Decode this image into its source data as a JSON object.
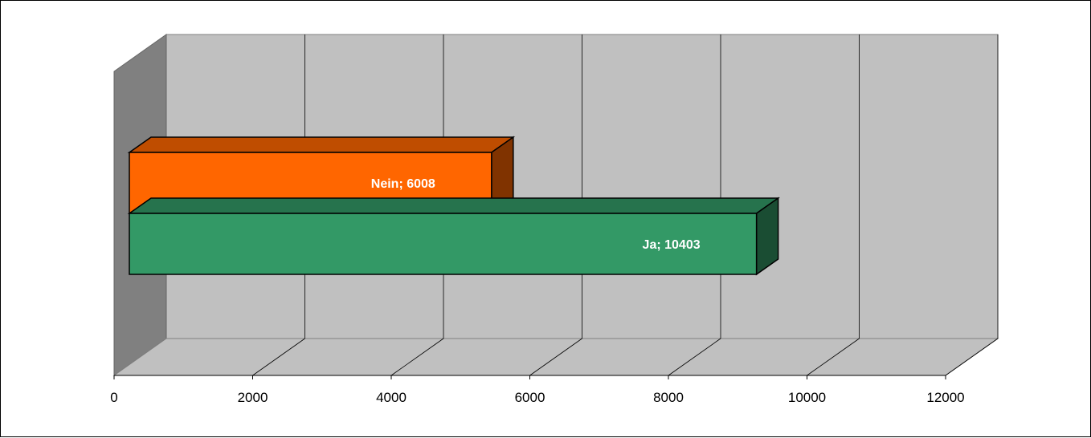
{
  "chart_data": {
    "type": "bar",
    "orientation": "horizontal",
    "three_d": true,
    "title": "",
    "xlabel": "",
    "ylabel": "",
    "xlim": [
      0,
      12000
    ],
    "x_ticks": [
      0,
      2000,
      4000,
      6000,
      8000,
      10000,
      12000
    ],
    "grid": true,
    "legend": "none",
    "bars": [
      {
        "category": "Ja",
        "value": 10403,
        "label": "Ja; 10403",
        "color": "#339966"
      },
      {
        "category": "Nein",
        "value": 6008,
        "label": "Nein; 6008",
        "color": "#FF6600"
      }
    ],
    "colors": {
      "back_wall": "#C0C0C0",
      "side_wall": "#808080",
      "floor": "#C0C0C0",
      "outline": "#000000"
    }
  }
}
